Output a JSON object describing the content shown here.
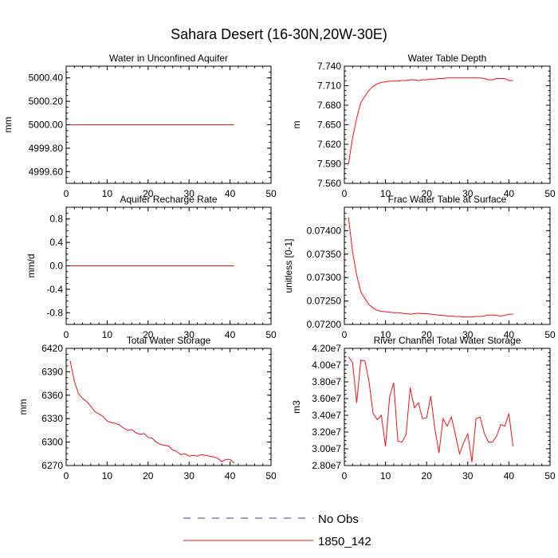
{
  "title": "Sahara Desert (16-30N,20W-30E)",
  "colors": {
    "model": "#e8141c",
    "obs": "#3b3bb8",
    "axis": "#000000"
  },
  "legend": {
    "entries": [
      {
        "label": "No Obs",
        "style": "dashed",
        "color": "#3b3bb8"
      },
      {
        "label": "1850_142",
        "style": "solid",
        "color": "#e8141c"
      }
    ]
  },
  "chart_data": [
    {
      "type": "line",
      "title": "Water in Unconfined Aquifer",
      "ylabel": "mm",
      "xlim": [
        0,
        50
      ],
      "ylim": [
        4999.5,
        5000.5
      ],
      "xticks": [
        0,
        10,
        20,
        30,
        40,
        50
      ],
      "yticks": [
        4999.6,
        4999.8,
        5000.0,
        5000.2,
        5000.4
      ],
      "ytick_labels": [
        "4999.60",
        "4999.80",
        "5000.00",
        "5000.20",
        "5000.40"
      ],
      "series": [
        {
          "name": "1850_142",
          "x": [
            1,
            41
          ],
          "y": [
            5000.0,
            5000.0
          ]
        }
      ]
    },
    {
      "type": "line",
      "title": "Water Table Depth",
      "ylabel": "m",
      "xlim": [
        0,
        50
      ],
      "ylim": [
        7.56,
        7.74
      ],
      "xticks": [
        0,
        10,
        20,
        30,
        40,
        50
      ],
      "yticks": [
        7.56,
        7.59,
        7.62,
        7.65,
        7.68,
        7.71,
        7.74
      ],
      "ytick_labels": [
        "7.560",
        "7.590",
        "7.620",
        "7.650",
        "7.680",
        "7.710",
        "7.740"
      ],
      "series": [
        {
          "name": "1850_142",
          "x": [
            1,
            2,
            3,
            4,
            5,
            6,
            7,
            8,
            9,
            10,
            11,
            12,
            13,
            14,
            15,
            16,
            17,
            18,
            19,
            20,
            21,
            22,
            23,
            24,
            25,
            26,
            27,
            28,
            29,
            30,
            31,
            32,
            33,
            34,
            35,
            36,
            37,
            38,
            39,
            40,
            41
          ],
          "y": [
            7.59,
            7.63,
            7.66,
            7.684,
            7.694,
            7.703,
            7.709,
            7.713,
            7.715,
            7.716,
            7.717,
            7.717,
            7.717,
            7.718,
            7.718,
            7.719,
            7.719,
            7.718,
            7.719,
            7.719,
            7.72,
            7.72,
            7.721,
            7.721,
            7.722,
            7.722,
            7.722,
            7.722,
            7.722,
            7.722,
            7.722,
            7.722,
            7.722,
            7.721,
            7.719,
            7.719,
            7.721,
            7.721,
            7.721,
            7.718,
            7.718
          ]
        }
      ]
    },
    {
      "type": "line",
      "title": "Aquifer Recharge Rate",
      "ylabel": "mm/d",
      "xlim": [
        0,
        50
      ],
      "ylim": [
        -1.0,
        1.0
      ],
      "xticks": [
        0,
        10,
        20,
        30,
        40,
        50
      ],
      "yticks": [
        -0.8,
        -0.4,
        0.0,
        0.4,
        0.8
      ],
      "ytick_labels": [
        "-0.8",
        "-0.4",
        "0.0",
        "0.4",
        "0.8"
      ],
      "series": [
        {
          "name": "1850_142",
          "x": [
            1,
            41
          ],
          "y": [
            0.0,
            0.0
          ]
        }
      ]
    },
    {
      "type": "line",
      "title": "Frac Water Table at Surface",
      "ylabel": "unitless [0-1]",
      "xlim": [
        0,
        50
      ],
      "ylim": [
        0.072,
        0.0745
      ],
      "xticks": [
        0,
        10,
        20,
        30,
        40,
        50
      ],
      "yticks": [
        0.072,
        0.0725,
        0.073,
        0.0735,
        0.074
      ],
      "ytick_labels": [
        "0.07200",
        "0.07250",
        "0.07300",
        "0.07350",
        "0.07400"
      ],
      "series": [
        {
          "name": "1850_142",
          "x": [
            1,
            2,
            3,
            4,
            5,
            6,
            7,
            8,
            9,
            10,
            11,
            12,
            13,
            14,
            15,
            16,
            17,
            18,
            19,
            20,
            21,
            22,
            23,
            24,
            25,
            26,
            27,
            28,
            29,
            30,
            31,
            32,
            33,
            34,
            35,
            36,
            37,
            38,
            39,
            40,
            41
          ],
          "y": [
            0.07428,
            0.07355,
            0.07305,
            0.0727,
            0.07255,
            0.07242,
            0.07235,
            0.0723,
            0.07228,
            0.07227,
            0.07226,
            0.07225,
            0.07225,
            0.07224,
            0.07223,
            0.07222,
            0.07223,
            0.07224,
            0.07223,
            0.07223,
            0.07222,
            0.07221,
            0.0722,
            0.07219,
            0.07218,
            0.07218,
            0.07217,
            0.07217,
            0.07216,
            0.07216,
            0.07216,
            0.07217,
            0.07217,
            0.07218,
            0.0722,
            0.0722,
            0.07219,
            0.07218,
            0.07219,
            0.07222,
            0.07222
          ]
        }
      ]
    },
    {
      "type": "line",
      "title": "Total Water Storage",
      "ylabel": "mm",
      "xlim": [
        0,
        50
      ],
      "ylim": [
        6270,
        6420
      ],
      "xticks": [
        0,
        10,
        20,
        30,
        40,
        50
      ],
      "yticks": [
        6270,
        6300,
        6330,
        6360,
        6390,
        6420
      ],
      "ytick_labels": [
        "6270",
        "6300",
        "6330",
        "6360",
        "6390",
        "6420"
      ],
      "series": [
        {
          "name": "1850_142",
          "x": [
            1,
            2,
            3,
            4,
            5,
            6,
            7,
            8,
            9,
            10,
            11,
            12,
            13,
            14,
            15,
            16,
            17,
            18,
            19,
            20,
            21,
            22,
            23,
            24,
            25,
            26,
            27,
            28,
            29,
            30,
            31,
            32,
            33,
            34,
            35,
            36,
            37,
            38,
            39,
            40,
            41
          ],
          "y": [
            6404,
            6378,
            6362,
            6356,
            6352,
            6346,
            6339,
            6336,
            6333,
            6327,
            6325,
            6324,
            6322,
            6318,
            6315,
            6316,
            6312,
            6310,
            6311,
            6306,
            6305,
            6300,
            6297,
            6296,
            6295,
            6290,
            6288,
            6284,
            6285,
            6282,
            6283,
            6282,
            6284,
            6283,
            6282,
            6281,
            6279,
            6275,
            6278,
            6278,
            6273
          ]
        }
      ]
    },
    {
      "type": "line",
      "title": "River Channel Total Water Storage",
      "ylabel": "m3",
      "xlim": [
        0,
        50
      ],
      "ylim": [
        28000000.0,
        42000000.0
      ],
      "xticks": [
        0,
        10,
        20,
        30,
        40,
        50
      ],
      "yticks": [
        28000000.0,
        30000000.0,
        32000000.0,
        34000000.0,
        36000000.0,
        38000000.0,
        40000000.0,
        42000000.0
      ],
      "ytick_labels": [
        "2.80e7",
        "3.00e7",
        "3.20e7",
        "3.40e7",
        "3.60e7",
        "3.80e7",
        "4.00e7",
        "4.20e7"
      ],
      "series": [
        {
          "name": "1850_142",
          "x": [
            1,
            2,
            3,
            4,
            5,
            6,
            7,
            8,
            9,
            10,
            11,
            12,
            13,
            14,
            15,
            16,
            17,
            18,
            19,
            20,
            21,
            22,
            23,
            24,
            25,
            26,
            27,
            28,
            29,
            30,
            31,
            32,
            33,
            34,
            35,
            36,
            37,
            38,
            39,
            40,
            41
          ],
          "y": [
            41000000.0,
            40300000.0,
            35500000.0,
            40600000.0,
            40500000.0,
            38000000.0,
            34200000.0,
            33500000.0,
            34000000.0,
            30300000.0,
            36200000.0,
            37900000.0,
            30900000.0,
            30800000.0,
            31700000.0,
            37300000.0,
            34900000.0,
            35500000.0,
            33600000.0,
            33700000.0,
            36300000.0,
            32400000.0,
            29500000.0,
            33600000.0,
            32700000.0,
            33800000.0,
            31700000.0,
            29400000.0,
            30700000.0,
            31800000.0,
            28400000.0,
            33600000.0,
            33800000.0,
            31900000.0,
            30800000.0,
            30800000.0,
            31500000.0,
            32900000.0,
            32700000.0,
            34200000.0,
            30300000.0
          ]
        }
      ]
    }
  ]
}
